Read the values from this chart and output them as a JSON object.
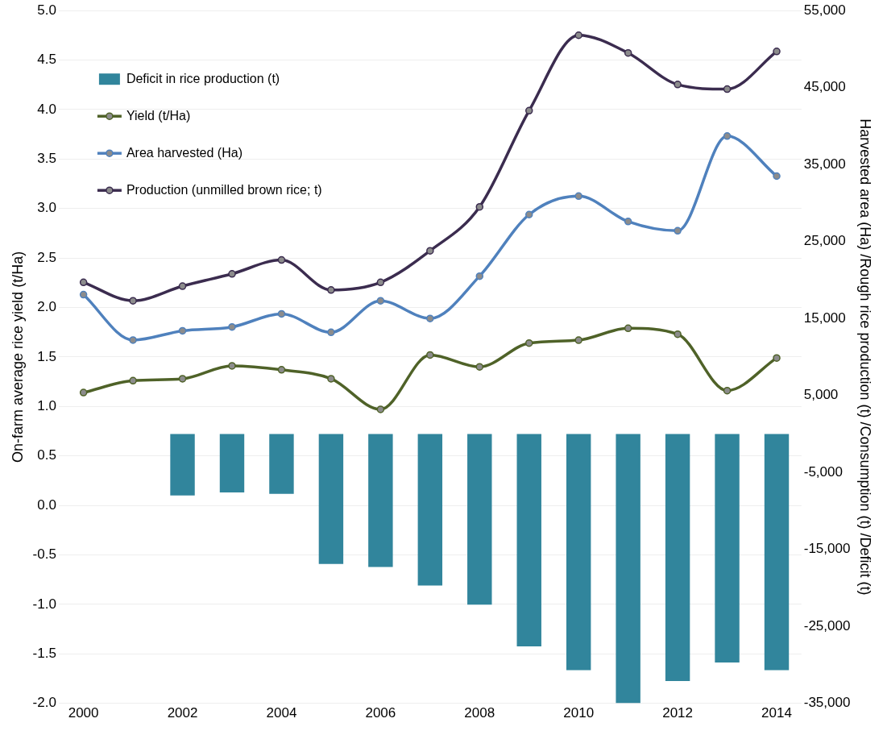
{
  "chart_data": {
    "type": "line",
    "ylabel": "On-farm average rice yield (t/Ha)",
    "y2label": "Harvested area (Ha) /Rough rice production (t) /Consumption (t) /Deficit (t)",
    "categories": [
      "2000",
      null,
      "2002",
      null,
      "2004",
      null,
      "2006",
      null,
      "2008",
      null,
      "2010",
      null,
      "2012",
      null,
      "2014"
    ],
    "ylim": [
      -2.0,
      5.0
    ],
    "yticks": [
      {
        "value": -2,
        "label": "-2.0"
      },
      {
        "value": -1.5,
        "label": "-1.5"
      },
      {
        "value": -1,
        "label": "-1.0"
      },
      {
        "value": -0.5,
        "label": "-0.5"
      },
      {
        "value": 0,
        "label": "0.0"
      },
      {
        "value": 0.5,
        "label": "0.5"
      },
      {
        "value": 1,
        "label": "1.0"
      },
      {
        "value": 1.5,
        "label": "1.5"
      },
      {
        "value": 2,
        "label": "2.0"
      },
      {
        "value": 2.5,
        "label": "2.5"
      },
      {
        "value": 3,
        "label": "3.0"
      },
      {
        "value": 3.5,
        "label": "3.5"
      },
      {
        "value": 4,
        "label": "4.0"
      },
      {
        "value": 4.5,
        "label": "4.5"
      },
      {
        "value": 5,
        "label": "5.0"
      }
    ],
    "y2lim": [
      -35000,
      55000
    ],
    "y2ticks": [
      {
        "value": -35000,
        "label": "-35,000"
      },
      {
        "value": -25000,
        "label": "-25,000"
      },
      {
        "value": -15000,
        "label": "-15,000"
      },
      {
        "value": -5000,
        "label": "-5,000"
      },
      {
        "value": 5000,
        "label": "5,000"
      },
      {
        "value": 15000,
        "label": "15,000"
      },
      {
        "value": 25000,
        "label": "25,000"
      },
      {
        "value": 35000,
        "label": "35,000"
      },
      {
        "value": 45000,
        "label": "45,000"
      },
      {
        "value": 55000,
        "label": "55,000"
      }
    ],
    "grid": "y",
    "legend": "top left",
    "marker": "circle",
    "series": [
      {
        "name": "Deficit in rice production (t)",
        "type": "bar",
        "axis": "y2",
        "color": "#31859c",
        "values": [
          null,
          null,
          -8000,
          -7600,
          -7800,
          -16900,
          -17300,
          -19700,
          -22200,
          -27600,
          -30700,
          -35000,
          -32100,
          -29700,
          -30700
        ]
      },
      {
        "name": "Yield (t/Ha)",
        "color": "#4f6228",
        "values": [
          1.14,
          1.26,
          1.28,
          1.41,
          1.37,
          1.28,
          0.97,
          1.52,
          1.4,
          1.64,
          1.67,
          1.79,
          1.73,
          1.16,
          1.49
        ]
      },
      {
        "name": "Area harvested (Ha)",
        "axis": "y2",
        "color": "#4f81bd",
        "values": [
          18100,
          12200,
          13400,
          13900,
          15600,
          13200,
          17300,
          15000,
          20500,
          28500,
          30900,
          27600,
          26400,
          38700,
          33500
        ]
      },
      {
        "name": "Production (unmilled brown rice; t)",
        "axis": "y2",
        "color": "#3b2c4f",
        "values": [
          19700,
          17300,
          19200,
          20800,
          22600,
          18700,
          19700,
          23800,
          29500,
          42000,
          51800,
          49500,
          45400,
          44800,
          49700
        ]
      }
    ]
  }
}
